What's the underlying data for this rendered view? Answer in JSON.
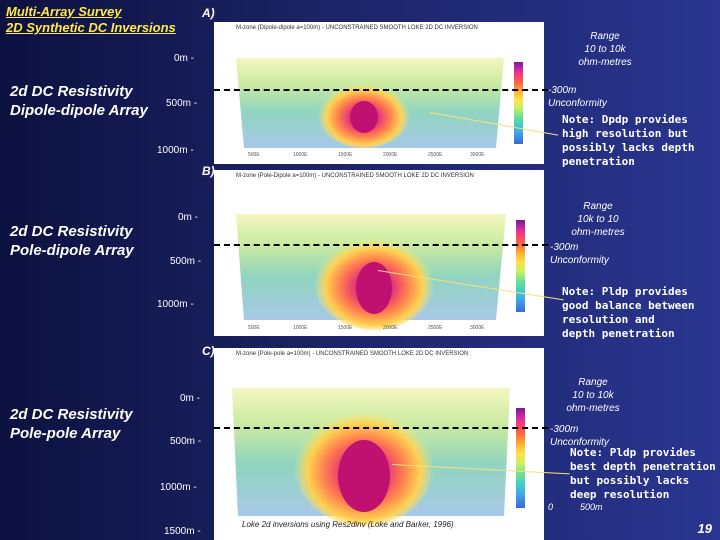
{
  "title": {
    "line1": "Multi-Array Survey",
    "line2": "2D Synthetic DC Inversions"
  },
  "sections": [
    {
      "letter": "A)",
      "label_line1": "2d DC Resistivity",
      "label_line2": "Dipole-dipole Array",
      "header": "M-zone (Dipole-dipole a=100m) - UNCONSTRAINED SMOOTH LOKE 2D DC INVERSION",
      "depths": [
        "0m -",
        "500m -",
        "1000m -"
      ],
      "range_line1": "Range",
      "range_line2": "10 to 10k",
      "range_line3": "ohm-metres",
      "unconf_line1": "-300m",
      "unconf_line2": "Unconformity",
      "note": [
        "Note: Dpdp provides",
        "high resolution but",
        "possibly lacks depth",
        "penetration"
      ]
    },
    {
      "letter": "B)",
      "label_line1": "2d DC Resistivity",
      "label_line2": "Pole-dipole Array",
      "header": "M-zone (Pole-Dipole a=100m) - UNCONSTRAINED SMOOTH LOKE 2D DC INVERSION",
      "depths": [
        "0m -",
        "500m -",
        "1000m -"
      ],
      "range_line1": "Range",
      "range_line2": "10k to 10",
      "range_line3": "ohm-metres",
      "unconf_line1": "-300m",
      "unconf_line2": "Unconformity",
      "note": [
        "Note: Pldp provides",
        "good balance between",
        "resolution and",
        "depth penetration"
      ]
    },
    {
      "letter": "C)",
      "label_line1": "2d DC Resistivity",
      "label_line2": "Pole-pole Array",
      "header": "M-zone (Pole-pole a=100m) - UNCONSTRAINED SMOOTH LOKE 2D DC INVERSION",
      "depths": [
        "0m -",
        "500m -",
        "1000m -",
        "1500m -"
      ],
      "range_line1": "Range",
      "range_line2": "10 to 10k",
      "range_line3": "ohm-metres",
      "unconf_line1": "-300m",
      "unconf_line2": "Unconformity",
      "note": [
        "Note: Pldp provides",
        "best depth penetration",
        "but possibly lacks",
        "deep resolution"
      ]
    }
  ],
  "x_ticks": [
    "500E",
    "1000E",
    "1500E",
    "2000E",
    "2500E",
    "3000E"
  ],
  "citation": "Loke 2d inversions using Res2dinv (Loke and Barker, 1996)",
  "scale": {
    "zero": "0",
    "distance": "500m"
  },
  "page_number": "19",
  "colors": {
    "title": "#ffe84a",
    "background": "#1b2466",
    "pointer": "#f5e27a",
    "anomaly": "#d01878"
  }
}
